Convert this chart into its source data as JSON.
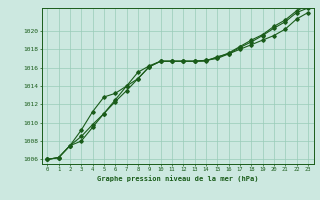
{
  "xlabel": "Graphe pression niveau de la mer (hPa)",
  "background_color": "#cce8e0",
  "grid_color": "#99ccb8",
  "line_color": "#1a5c1a",
  "ylim": [
    1005.5,
    1022.5
  ],
  "xlim": [
    -0.5,
    23.5
  ],
  "yticks": [
    1006,
    1008,
    1010,
    1012,
    1014,
    1016,
    1018,
    1020
  ],
  "xticks": [
    0,
    1,
    2,
    3,
    4,
    5,
    6,
    7,
    8,
    9,
    10,
    11,
    12,
    13,
    14,
    15,
    16,
    17,
    18,
    19,
    20,
    21,
    22,
    23
  ],
  "line1": [
    1006.0,
    1006.2,
    1007.5,
    1008.5,
    1009.8,
    1011.0,
    1012.5,
    1014.0,
    1015.5,
    1016.2,
    1016.7,
    1016.7,
    1016.7,
    1016.7,
    1016.7,
    1017.2,
    1017.5,
    1018.0,
    1018.5,
    1019.0,
    1019.5,
    1020.2,
    1021.3,
    1022.0
  ],
  "line2": [
    1006.0,
    1006.2,
    1007.5,
    1009.2,
    1011.2,
    1012.8,
    1013.2,
    1014.0,
    1014.8,
    1016.1,
    1016.7,
    1016.7,
    1016.7,
    1016.7,
    1016.8,
    1017.0,
    1017.5,
    1018.2,
    1018.8,
    1019.5,
    1020.3,
    1021.0,
    1022.0,
    1022.5
  ],
  "line3": [
    1006.0,
    1006.2,
    1007.5,
    1008.0,
    1009.5,
    1011.0,
    1012.3,
    1013.5,
    1014.8,
    1016.1,
    1016.7,
    1016.7,
    1016.7,
    1016.7,
    1016.8,
    1017.1,
    1017.6,
    1018.3,
    1019.0,
    1019.6,
    1020.5,
    1021.2,
    1022.2,
    1022.8
  ]
}
